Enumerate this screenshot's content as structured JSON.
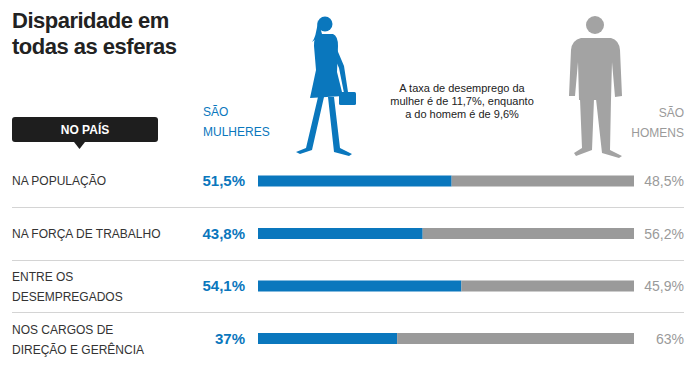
{
  "chart_data": {
    "type": "bar",
    "orientation": "horizontal",
    "stacked": true,
    "data_labels": true,
    "tick_labels": false,
    "title": "Disparidade em todas as esferas",
    "subtitle": "NO PAÍS",
    "annotations": [
      "A taxa de desemprego da",
      "mulher é de 11,7%, enquanto",
      "a do homem é de 9,6%"
    ],
    "categories": [
      "NA POPULAÇÃO",
      "NA FORÇA DE TRABALHO",
      "ENTRE OS DESEMPREGADOS",
      "NOS CARGOS DE DIREÇÃO E GERÊNCIA"
    ],
    "series": [
      {
        "name": "SÃO MULHERES",
        "color": "#0a77bd",
        "values": [
          51.5,
          43.8,
          54.1,
          37
        ],
        "value_labels": [
          "51,5%",
          "43,8%",
          "54,1%",
          "37%"
        ]
      },
      {
        "name": "SÃO HOMENS",
        "color": "#9a9a9a",
        "values": [
          48.5,
          56.2,
          45.9,
          63
        ],
        "value_labels": [
          "48,5%",
          "56,2%",
          "45,9%",
          "63%"
        ]
      }
    ],
    "xlim": [
      0,
      100
    ]
  }
}
